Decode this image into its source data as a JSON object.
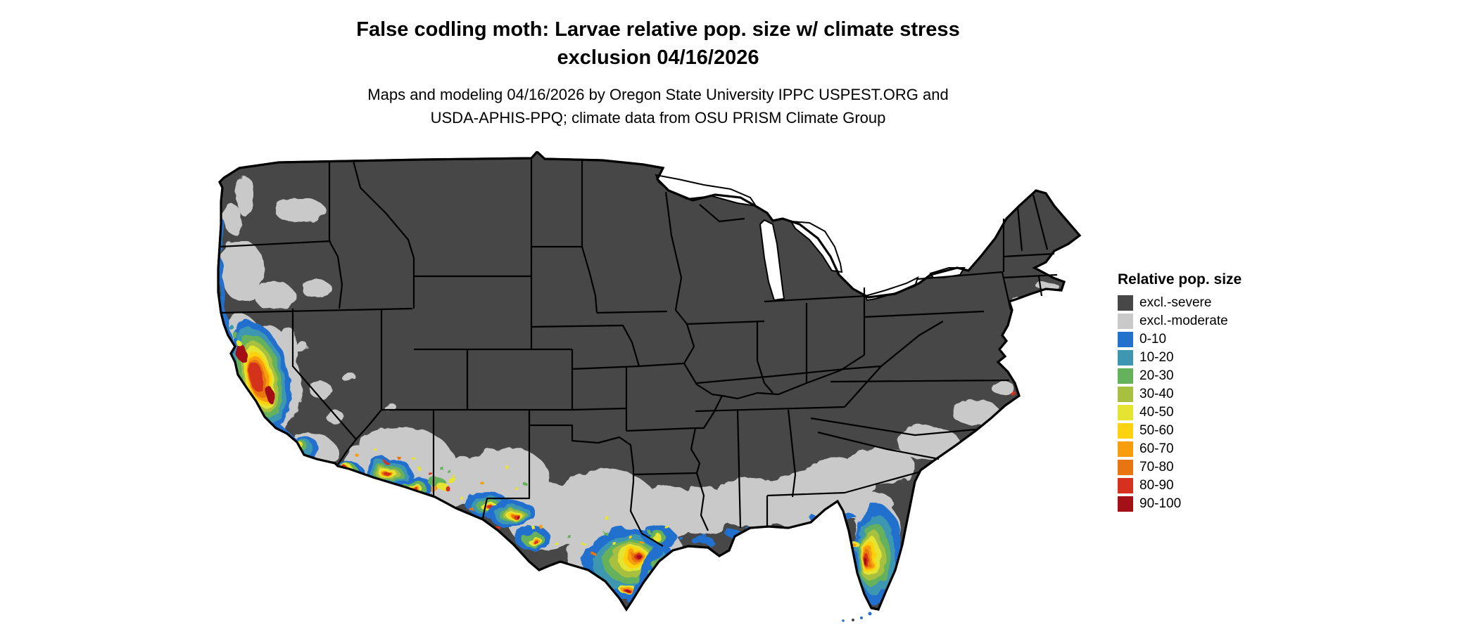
{
  "header": {
    "title_line1": "False codling moth: Larvae relative pop. size w/ climate stress",
    "title_line2": "exclusion 04/16/2026",
    "subtitle_line1": "Maps and modeling 04/16/2026 by Oregon State University IPPC USPEST.ORG and",
    "subtitle_line2": "USDA-APHIS-PPQ; climate data from OSU PRISM Climate Group"
  },
  "legend": {
    "title": "Relative pop. size",
    "items": [
      {
        "label": "excl.-severe",
        "color": "#474747"
      },
      {
        "label": "excl.-moderate",
        "color": "#c9c9c9"
      },
      {
        "label": "0-10",
        "color": "#2470cd"
      },
      {
        "label": "10-20",
        "color": "#3d97b0"
      },
      {
        "label": "20-30",
        "color": "#66b15c"
      },
      {
        "label": "30-40",
        "color": "#a8c040"
      },
      {
        "label": "40-50",
        "color": "#e5e431"
      },
      {
        "label": "50-60",
        "color": "#fdd20e"
      },
      {
        "label": "60-70",
        "color": "#f89d0e"
      },
      {
        "label": "70-80",
        "color": "#e8750f"
      },
      {
        "label": "80-90",
        "color": "#d5311e"
      },
      {
        "label": "90-100",
        "color": "#a31116"
      }
    ]
  }
}
